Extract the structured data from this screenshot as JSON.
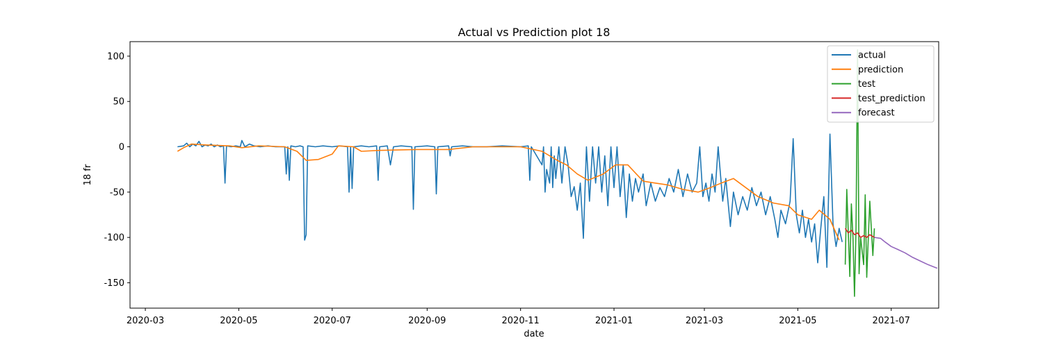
{
  "chart_data": {
    "type": "line",
    "title": "Actual vs Prediction plot 18",
    "xlabel": "date",
    "ylabel": "18 fr",
    "x_axis_type": "date",
    "xlim": [
      "2020-02-20",
      "2021-08-01"
    ],
    "ylim": [
      -178,
      116
    ],
    "x_ticks": [
      "2020-03",
      "2020-05",
      "2020-07",
      "2020-09",
      "2020-11",
      "2021-01",
      "2021-03",
      "2021-05",
      "2021-07"
    ],
    "x_tick_dates": [
      "2020-03-01",
      "2020-05-01",
      "2020-07-01",
      "2020-09-01",
      "2020-11-01",
      "2021-01-01",
      "2021-03-01",
      "2021-05-01",
      "2021-07-01"
    ],
    "y_ticks": [
      100,
      50,
      0,
      -50,
      -100,
      -150
    ],
    "grid": false,
    "legend_position": "top-right",
    "series": [
      {
        "name": "actual",
        "color": "#1f77b4",
        "points": [
          [
            "2020-03-22",
            0
          ],
          [
            "2020-03-26",
            1
          ],
          [
            "2020-03-28",
            4
          ],
          [
            "2020-03-30",
            0
          ],
          [
            "2020-04-01",
            3
          ],
          [
            "2020-04-03",
            1
          ],
          [
            "2020-04-05",
            6
          ],
          [
            "2020-04-07",
            0
          ],
          [
            "2020-04-09",
            2
          ],
          [
            "2020-04-11",
            1
          ],
          [
            "2020-04-13",
            3
          ],
          [
            "2020-04-15",
            0
          ],
          [
            "2020-04-17",
            2
          ],
          [
            "2020-04-19",
            0
          ],
          [
            "2020-04-21",
            1
          ],
          [
            "2020-04-22",
            -40
          ],
          [
            "2020-04-23",
            1
          ],
          [
            "2020-04-26",
            0
          ],
          [
            "2020-04-29",
            1
          ],
          [
            "2020-05-02",
            0
          ],
          [
            "2020-05-03",
            7
          ],
          [
            "2020-05-05",
            0
          ],
          [
            "2020-05-08",
            3
          ],
          [
            "2020-05-11",
            1
          ],
          [
            "2020-05-15",
            0
          ],
          [
            "2020-05-20",
            1
          ],
          [
            "2020-05-25",
            0
          ],
          [
            "2020-05-31",
            0
          ],
          [
            "2020-06-01",
            -30
          ],
          [
            "2020-06-02",
            0
          ],
          [
            "2020-06-03",
            -37
          ],
          [
            "2020-06-04",
            1
          ],
          [
            "2020-06-07",
            0
          ],
          [
            "2020-06-10",
            1
          ],
          [
            "2020-06-12",
            0
          ],
          [
            "2020-06-13",
            -103
          ],
          [
            "2020-06-14",
            -97
          ],
          [
            "2020-06-15",
            1
          ],
          [
            "2020-06-20",
            0
          ],
          [
            "2020-06-25",
            1
          ],
          [
            "2020-07-01",
            0
          ],
          [
            "2020-07-06",
            1
          ],
          [
            "2020-07-11",
            0
          ],
          [
            "2020-07-12",
            -50
          ],
          [
            "2020-07-13",
            0
          ],
          [
            "2020-07-14",
            -46
          ],
          [
            "2020-07-15",
            0
          ],
          [
            "2020-07-20",
            1
          ],
          [
            "2020-07-25",
            0
          ],
          [
            "2020-07-30",
            1
          ],
          [
            "2020-07-31",
            -37
          ],
          [
            "2020-08-01",
            0
          ],
          [
            "2020-08-06",
            1
          ],
          [
            "2020-08-08",
            -20
          ],
          [
            "2020-08-10",
            0
          ],
          [
            "2020-08-15",
            1
          ],
          [
            "2020-08-22",
            0
          ],
          [
            "2020-08-23",
            -69
          ],
          [
            "2020-08-24",
            0
          ],
          [
            "2020-09-01",
            1
          ],
          [
            "2020-09-06",
            0
          ],
          [
            "2020-09-07",
            -52
          ],
          [
            "2020-09-08",
            0
          ],
          [
            "2020-09-15",
            1
          ],
          [
            "2020-09-16",
            -10
          ],
          [
            "2020-09-17",
            0
          ],
          [
            "2020-09-24",
            1
          ],
          [
            "2020-10-01",
            0
          ],
          [
            "2020-10-10",
            0
          ],
          [
            "2020-10-20",
            1
          ],
          [
            "2020-11-01",
            0
          ],
          [
            "2020-11-06",
            1
          ],
          [
            "2020-11-07",
            -37
          ],
          [
            "2020-11-08",
            0
          ],
          [
            "2020-11-15",
            -20
          ],
          [
            "2020-11-16",
            0
          ],
          [
            "2020-11-17",
            -50
          ],
          [
            "2020-11-18",
            -25
          ],
          [
            "2020-11-20",
            -40
          ],
          [
            "2020-11-21",
            0
          ],
          [
            "2020-11-22",
            -45
          ],
          [
            "2020-11-23",
            -10
          ],
          [
            "2020-11-24",
            -35
          ],
          [
            "2020-11-26",
            0
          ],
          [
            "2020-11-28",
            -40
          ],
          [
            "2020-11-30",
            0
          ],
          [
            "2020-12-02",
            -20
          ],
          [
            "2020-12-04",
            -55
          ],
          [
            "2020-12-06",
            -44
          ],
          [
            "2020-12-08",
            -70
          ],
          [
            "2020-12-10",
            -40
          ],
          [
            "2020-12-12",
            -101
          ],
          [
            "2020-12-14",
            0
          ],
          [
            "2020-12-16",
            -60
          ],
          [
            "2020-12-18",
            0
          ],
          [
            "2020-12-20",
            -40
          ],
          [
            "2020-12-22",
            0
          ],
          [
            "2020-12-24",
            -50
          ],
          [
            "2020-12-26",
            -10
          ],
          [
            "2020-12-28",
            -65
          ],
          [
            "2020-12-30",
            0
          ],
          [
            "2021-01-01",
            -45
          ],
          [
            "2021-01-03",
            0
          ],
          [
            "2021-01-05",
            -55
          ],
          [
            "2021-01-07",
            -20
          ],
          [
            "2021-01-09",
            -78
          ],
          [
            "2021-01-11",
            -30
          ],
          [
            "2021-01-13",
            -60
          ],
          [
            "2021-01-15",
            -35
          ],
          [
            "2021-01-17",
            -50
          ],
          [
            "2021-01-20",
            -30
          ],
          [
            "2021-01-22",
            -65
          ],
          [
            "2021-01-25",
            -40
          ],
          [
            "2021-01-28",
            -60
          ],
          [
            "2021-01-31",
            -45
          ],
          [
            "2021-02-03",
            -55
          ],
          [
            "2021-02-06",
            -35
          ],
          [
            "2021-02-09",
            -50
          ],
          [
            "2021-02-12",
            -25
          ],
          [
            "2021-02-15",
            -55
          ],
          [
            "2021-02-18",
            -30
          ],
          [
            "2021-02-21",
            -50
          ],
          [
            "2021-02-24",
            -40
          ],
          [
            "2021-02-26",
            0
          ],
          [
            "2021-02-28",
            -55
          ],
          [
            "2021-03-02",
            -40
          ],
          [
            "2021-03-04",
            -60
          ],
          [
            "2021-03-06",
            -30
          ],
          [
            "2021-03-08",
            -50
          ],
          [
            "2021-03-10",
            0
          ],
          [
            "2021-03-13",
            -60
          ],
          [
            "2021-03-15",
            -35
          ],
          [
            "2021-03-18",
            -88
          ],
          [
            "2021-03-20",
            -50
          ],
          [
            "2021-03-23",
            -75
          ],
          [
            "2021-03-26",
            -55
          ],
          [
            "2021-03-29",
            -70
          ],
          [
            "2021-04-01",
            -45
          ],
          [
            "2021-04-04",
            -65
          ],
          [
            "2021-04-07",
            -50
          ],
          [
            "2021-04-10",
            -75
          ],
          [
            "2021-04-13",
            -55
          ],
          [
            "2021-04-16",
            -80
          ],
          [
            "2021-04-18",
            -100
          ],
          [
            "2021-04-20",
            -70
          ],
          [
            "2021-04-23",
            -85
          ],
          [
            "2021-04-26",
            -60
          ],
          [
            "2021-04-28",
            9
          ],
          [
            "2021-04-30",
            -75
          ],
          [
            "2021-05-02",
            -95
          ],
          [
            "2021-05-04",
            -70
          ],
          [
            "2021-05-06",
            -100
          ],
          [
            "2021-05-08",
            -80
          ],
          [
            "2021-05-10",
            -105
          ],
          [
            "2021-05-12",
            -85
          ],
          [
            "2021-05-14",
            -128
          ],
          [
            "2021-05-16",
            -90
          ],
          [
            "2021-05-18",
            -55
          ],
          [
            "2021-05-20",
            -133
          ],
          [
            "2021-05-22",
            14
          ],
          [
            "2021-05-24",
            -85
          ],
          [
            "2021-05-26",
            -110
          ],
          [
            "2021-05-28",
            -90
          ],
          [
            "2021-05-30",
            -105
          ]
        ]
      },
      {
        "name": "prediction",
        "color": "#ff7f0e",
        "points": [
          [
            "2020-03-22",
            -5
          ],
          [
            "2020-03-26",
            -1
          ],
          [
            "2020-03-31",
            3
          ],
          [
            "2020-04-10",
            2
          ],
          [
            "2020-04-25",
            1
          ],
          [
            "2020-05-03",
            -1
          ],
          [
            "2020-05-14",
            1
          ],
          [
            "2020-05-31",
            0
          ],
          [
            "2020-06-08",
            -5
          ],
          [
            "2020-06-14",
            -15
          ],
          [
            "2020-06-22",
            -14
          ],
          [
            "2020-07-01",
            -8
          ],
          [
            "2020-07-05",
            1
          ],
          [
            "2020-07-15",
            0
          ],
          [
            "2020-07-20",
            -5
          ],
          [
            "2020-08-01",
            -4
          ],
          [
            "2020-08-25",
            -3
          ],
          [
            "2020-09-15",
            -3
          ],
          [
            "2020-10-01",
            0
          ],
          [
            "2020-11-01",
            0
          ],
          [
            "2020-11-15",
            -5
          ],
          [
            "2020-11-25",
            -15
          ],
          [
            "2020-12-01",
            -20
          ],
          [
            "2020-12-08",
            -30
          ],
          [
            "2020-12-15",
            -37
          ],
          [
            "2020-12-25",
            -30
          ],
          [
            "2021-01-02",
            -20
          ],
          [
            "2021-01-10",
            -20
          ],
          [
            "2021-01-20",
            -38
          ],
          [
            "2021-01-28",
            -40
          ],
          [
            "2021-02-05",
            -42
          ],
          [
            "2021-02-15",
            -47
          ],
          [
            "2021-02-25",
            -50
          ],
          [
            "2021-03-05",
            -45
          ],
          [
            "2021-03-12",
            -40
          ],
          [
            "2021-03-20",
            -35
          ],
          [
            "2021-03-28",
            -45
          ],
          [
            "2021-04-05",
            -55
          ],
          [
            "2021-04-15",
            -62
          ],
          [
            "2021-04-25",
            -65
          ],
          [
            "2021-05-01",
            -75
          ],
          [
            "2021-05-10",
            -80
          ],
          [
            "2021-05-15",
            -70
          ],
          [
            "2021-05-22",
            -80
          ],
          [
            "2021-05-28",
            -103
          ]
        ]
      },
      {
        "name": "test",
        "color": "#2ca02c",
        "points": [
          [
            "2021-06-01",
            -130
          ],
          [
            "2021-06-02",
            -47
          ],
          [
            "2021-06-04",
            -143
          ],
          [
            "2021-06-05",
            -63
          ],
          [
            "2021-06-06",
            -100
          ],
          [
            "2021-06-07",
            -165
          ],
          [
            "2021-06-08",
            -90
          ],
          [
            "2021-06-09",
            107
          ],
          [
            "2021-06-10",
            -140
          ],
          [
            "2021-06-11",
            -100
          ],
          [
            "2021-06-13",
            -130
          ],
          [
            "2021-06-14",
            -53
          ],
          [
            "2021-06-15",
            -144
          ],
          [
            "2021-06-17",
            -60
          ],
          [
            "2021-06-19",
            -120
          ],
          [
            "2021-06-20",
            -90
          ]
        ]
      },
      {
        "name": "test_prediction",
        "color": "#d62728",
        "points": [
          [
            "2021-06-01",
            -90
          ],
          [
            "2021-06-03",
            -95
          ],
          [
            "2021-06-05",
            -92
          ],
          [
            "2021-06-07",
            -97
          ],
          [
            "2021-06-09",
            -95
          ],
          [
            "2021-06-11",
            -100
          ],
          [
            "2021-06-13",
            -98
          ],
          [
            "2021-06-15",
            -100
          ],
          [
            "2021-06-17",
            -97
          ],
          [
            "2021-06-20",
            -100
          ]
        ]
      },
      {
        "name": "forecast",
        "color": "#9467bd",
        "points": [
          [
            "2021-06-20",
            -100
          ],
          [
            "2021-06-24",
            -101
          ],
          [
            "2021-06-27",
            -105
          ],
          [
            "2021-07-01",
            -110
          ],
          [
            "2021-07-05",
            -113
          ],
          [
            "2021-07-10",
            -117
          ],
          [
            "2021-07-15",
            -122
          ],
          [
            "2021-07-20",
            -126
          ],
          [
            "2021-07-25",
            -130
          ],
          [
            "2021-07-31",
            -134
          ]
        ]
      }
    ]
  }
}
